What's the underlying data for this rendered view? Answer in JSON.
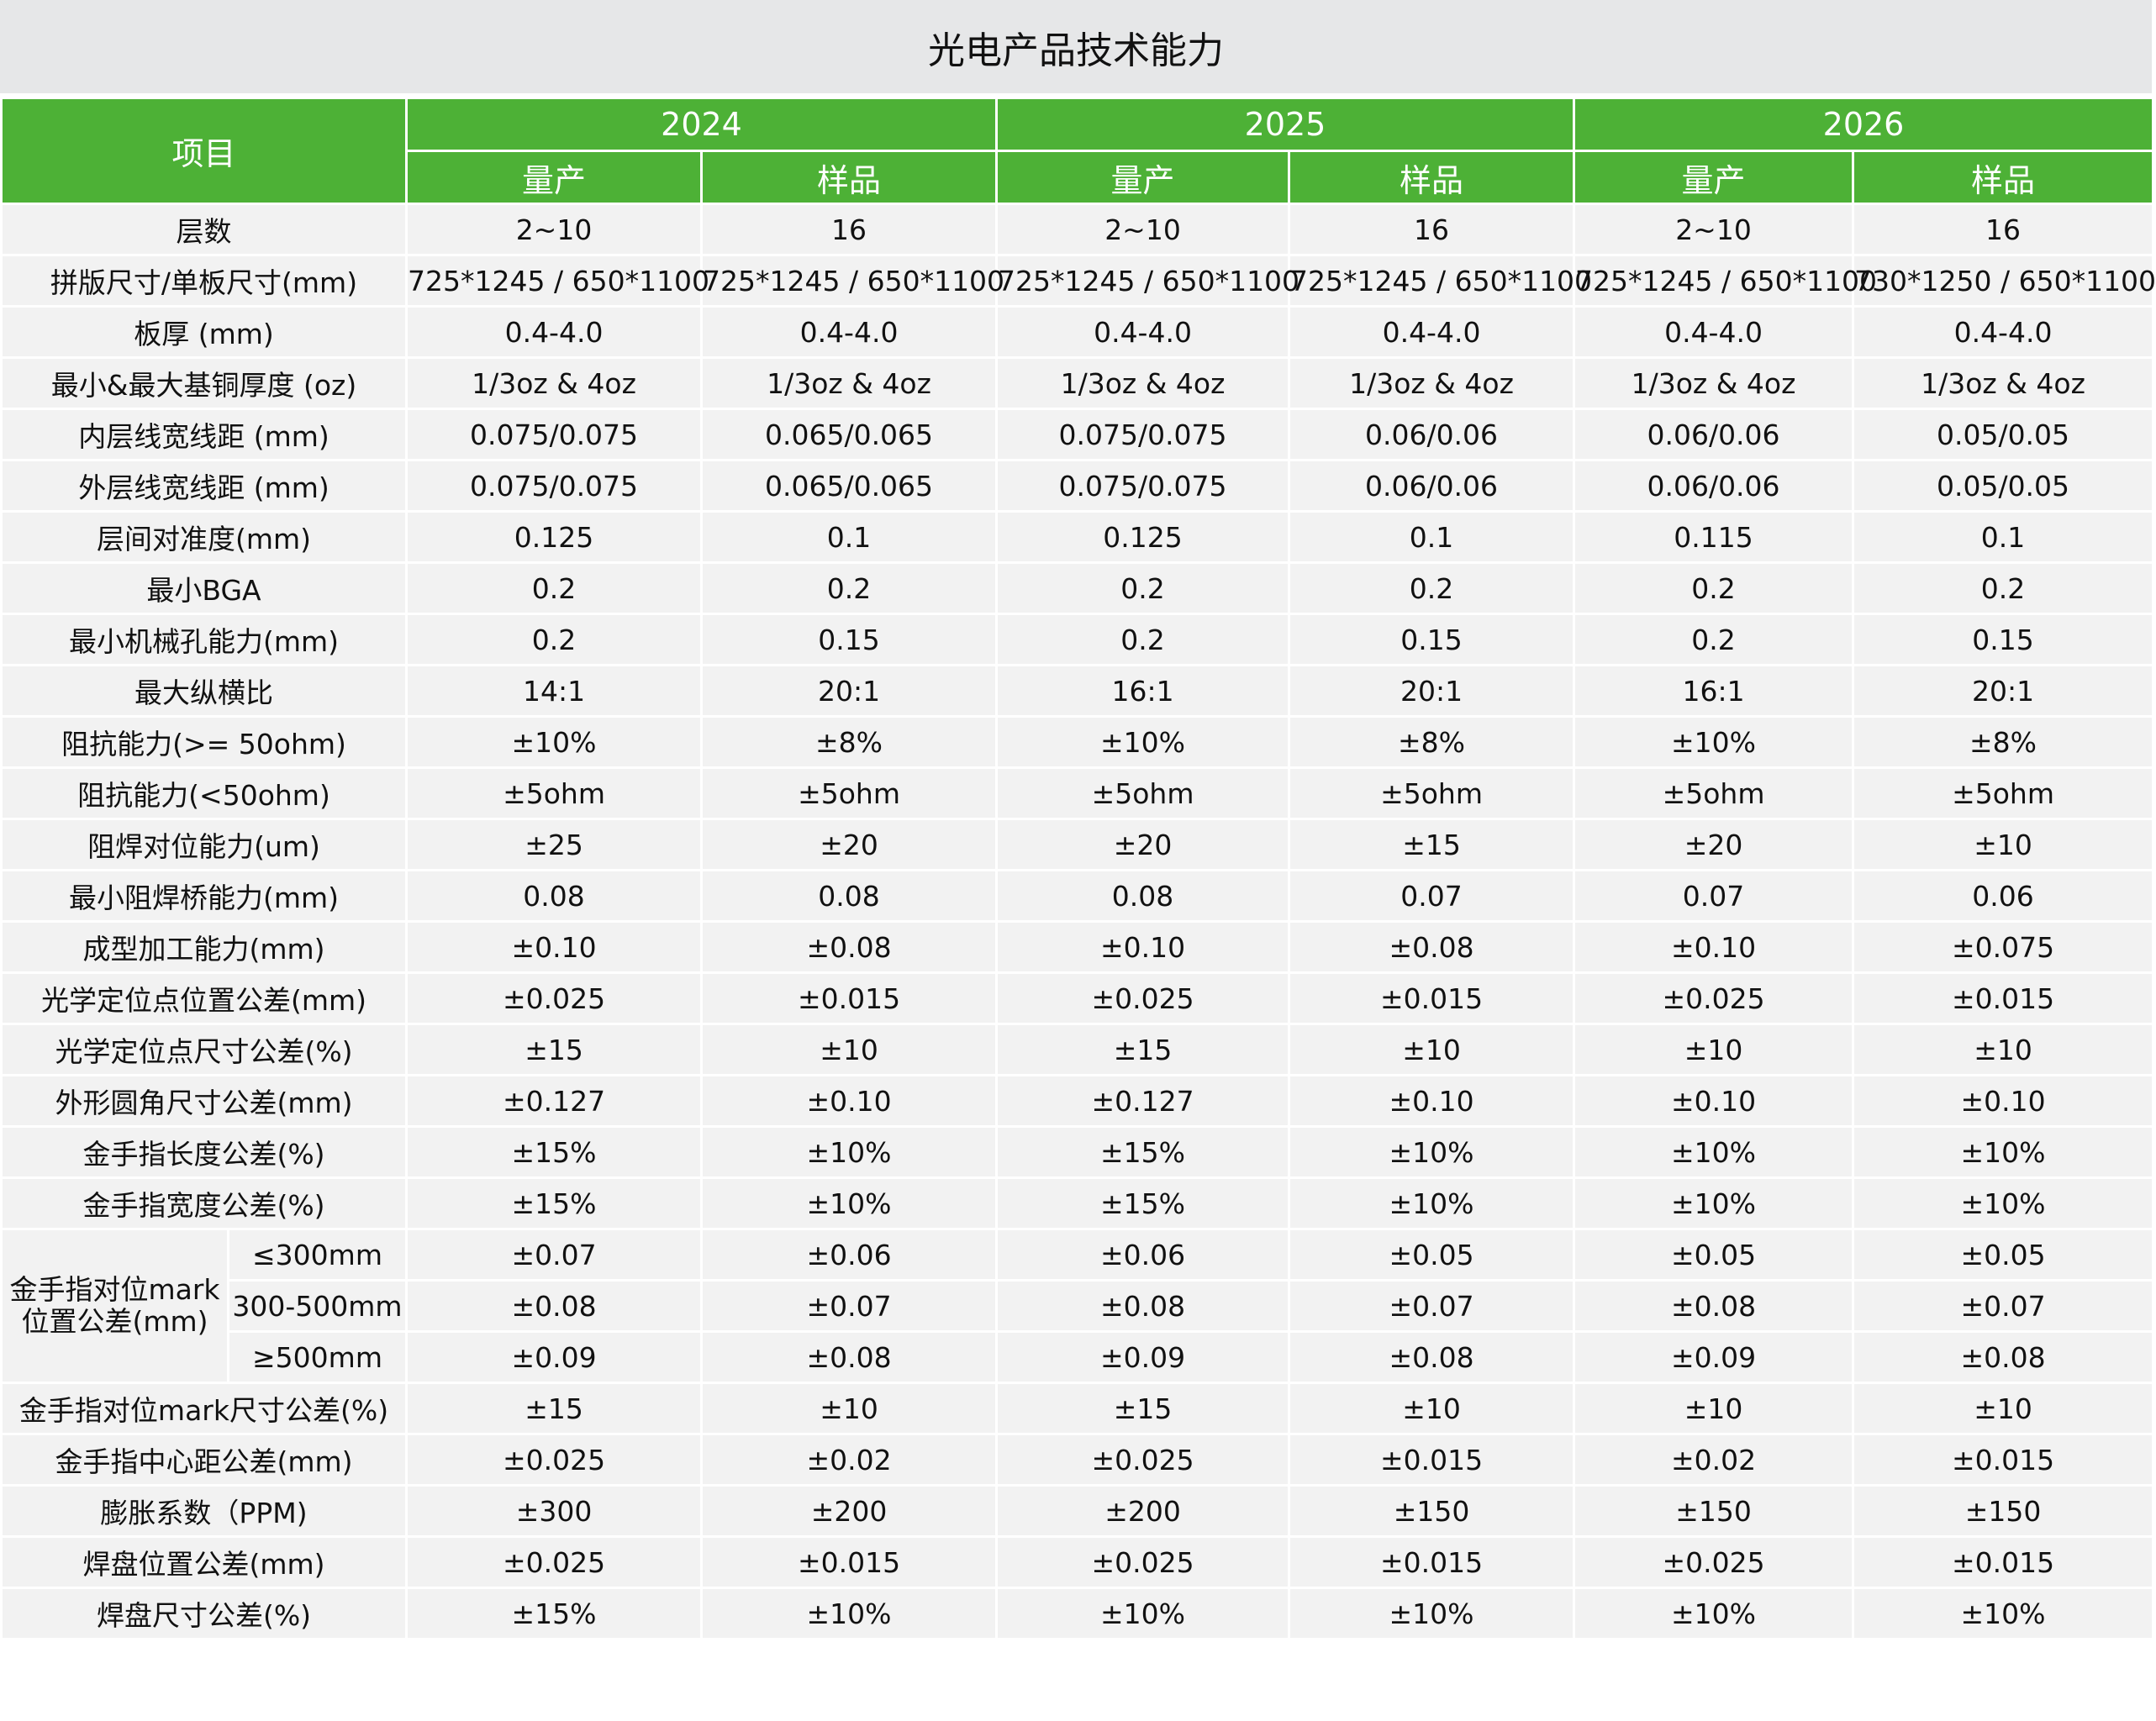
{
  "title": "光电产品技术能力",
  "header": {
    "item": "项目",
    "years": [
      "2024",
      "2025",
      "2026"
    ],
    "sub": [
      "量产",
      "样品"
    ]
  },
  "theme": {
    "header_green": "#4db136",
    "row_bg": "#f2f2f2",
    "title_bg": "#e6e7e8"
  },
  "rows": [
    {
      "label": "层数",
      "values": [
        "2~10",
        "16",
        "2~10",
        "16",
        "2~10",
        "16"
      ]
    },
    {
      "label": "拼版尺寸/单板尺寸(mm)",
      "values": [
        "725*1245 / 650*1100",
        "725*1245 / 650*1100",
        "725*1245 / 650*1100",
        "725*1245 / 650*1100",
        "725*1245 / 650*1100",
        "730*1250 / 650*1100"
      ]
    },
    {
      "label": "板厚 (mm)",
      "values": [
        "0.4-4.0",
        "0.4-4.0",
        "0.4-4.0",
        "0.4-4.0",
        "0.4-4.0",
        "0.4-4.0"
      ]
    },
    {
      "label": "最小&最大基铜厚度 (oz)",
      "values": [
        "1/3oz & 4oz",
        "1/3oz & 4oz",
        "1/3oz & 4oz",
        "1/3oz & 4oz",
        "1/3oz & 4oz",
        "1/3oz & 4oz"
      ]
    },
    {
      "label": "内层线宽线距 (mm)",
      "values": [
        "0.075/0.075",
        "0.065/0.065",
        "0.075/0.075",
        "0.06/0.06",
        "0.06/0.06",
        "0.05/0.05"
      ]
    },
    {
      "label": "外层线宽线距 (mm)",
      "values": [
        "0.075/0.075",
        "0.065/0.065",
        "0.075/0.075",
        "0.06/0.06",
        "0.06/0.06",
        "0.05/0.05"
      ]
    },
    {
      "label": "层间对准度(mm)",
      "values": [
        "0.125",
        "0.1",
        "0.125",
        "0.1",
        "0.115",
        "0.1"
      ]
    },
    {
      "label": "最小BGA",
      "values": [
        "0.2",
        "0.2",
        "0.2",
        "0.2",
        "0.2",
        "0.2"
      ]
    },
    {
      "label": "最小机械孔能力(mm)",
      "values": [
        "0.2",
        "0.15",
        "0.2",
        "0.15",
        "0.2",
        "0.15"
      ]
    },
    {
      "label": "最大纵横比",
      "values": [
        "14:1",
        "20:1",
        "16:1",
        "20:1",
        "16:1",
        "20:1"
      ]
    },
    {
      "label": "阻抗能力(>= 50ohm)",
      "values": [
        "±10%",
        "±8%",
        "±10%",
        "±8%",
        "±10%",
        "±8%"
      ]
    },
    {
      "label": "阻抗能力(<50ohm)",
      "values": [
        "±5ohm",
        "±5ohm",
        "±5ohm",
        "±5ohm",
        "±5ohm",
        "±5ohm"
      ]
    },
    {
      "label": "阻焊对位能力(um)",
      "values": [
        "±25",
        "±20",
        "±20",
        "±15",
        "±20",
        "±10"
      ]
    },
    {
      "label": "最小阻焊桥能力(mm)",
      "values": [
        "0.08",
        "0.08",
        "0.08",
        "0.07",
        "0.07",
        "0.06"
      ]
    },
    {
      "label": "成型加工能力(mm)",
      "values": [
        "±0.10",
        "±0.08",
        "±0.10",
        "±0.08",
        "±0.10",
        "±0.075"
      ]
    },
    {
      "label": "光学定位点位置公差(mm)",
      "values": [
        "±0.025",
        "±0.015",
        "±0.025",
        "±0.015",
        "±0.025",
        "±0.015"
      ]
    },
    {
      "label": "光学定位点尺寸公差(%)",
      "values": [
        "±15",
        "±10",
        "±15",
        "±10",
        "±10",
        "±10"
      ]
    },
    {
      "label": "外形圆角尺寸公差(mm)",
      "values": [
        "±0.127",
        "±0.10",
        "±0.127",
        "±0.10",
        "±0.10",
        "±0.10"
      ]
    },
    {
      "label": "金手指长度公差(%)",
      "values": [
        "±15%",
        "±10%",
        "±15%",
        "±10%",
        "±10%",
        "±10%"
      ]
    },
    {
      "label": "金手指宽度公差(%)",
      "values": [
        "±15%",
        "±10%",
        "±15%",
        "±10%",
        "±10%",
        "±10%"
      ]
    },
    {
      "group": "金手指对位mark位置公差(mm)",
      "sub": [
        {
          "label": "≤300mm",
          "values": [
            "±0.07",
            "±0.06",
            "±0.06",
            "±0.05",
            "±0.05",
            "±0.05"
          ]
        },
        {
          "label": "300-500mm",
          "values": [
            "±0.08",
            "±0.07",
            "±0.08",
            "±0.07",
            "±0.08",
            "±0.07"
          ]
        },
        {
          "label": "≥500mm",
          "values": [
            "±0.09",
            "±0.08",
            "±0.09",
            "±0.08",
            "±0.09",
            "±0.08"
          ]
        }
      ]
    },
    {
      "label": "金手指对位mark尺寸公差(%)",
      "values": [
        "±15",
        "±10",
        "±15",
        "±10",
        "±10",
        "±10"
      ]
    },
    {
      "label": "金手指中心距公差(mm)",
      "values": [
        "±0.025",
        "±0.02",
        "±0.025",
        "±0.015",
        "±0.02",
        "±0.015"
      ]
    },
    {
      "label": "膨胀系数（PPM)",
      "values": [
        "±300",
        "±200",
        "±200",
        "±150",
        "±150",
        "±150"
      ]
    },
    {
      "label": "焊盘位置公差(mm)",
      "values": [
        "±0.025",
        "±0.015",
        "±0.025",
        "±0.015",
        "±0.025",
        "±0.015"
      ]
    },
    {
      "label": "焊盘尺寸公差(%)",
      "values": [
        "±15%",
        "±10%",
        "±10%",
        "±10%",
        "±10%",
        "±10%"
      ]
    }
  ]
}
